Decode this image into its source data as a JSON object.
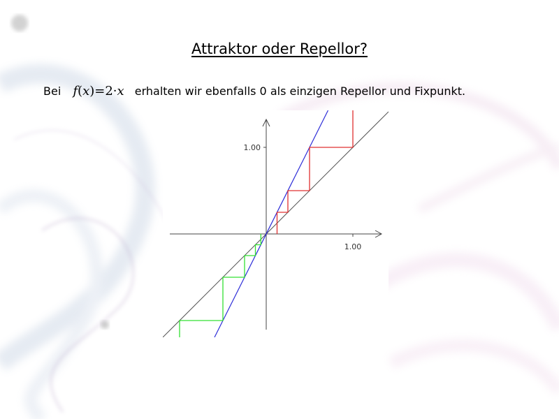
{
  "slide": {
    "title": "Attraktor oder Repellor?",
    "text_before": "Bei",
    "formula": {
      "fn": "f",
      "open": "(",
      "var": "x",
      "close_eq": ")=2·",
      "var2": "x"
    },
    "text_after": "erhalten wir ebenfalls 0 als einzigen Repellor und Fixpunkt."
  },
  "diagram": {
    "x_tick_label": "1.00",
    "y_tick_label": "1.00",
    "function": {
      "slope": 2,
      "color": "#2b2bd8"
    },
    "diagonal": {
      "slope": 1,
      "color": "#555555"
    },
    "x_range": [
      -1.4,
      1.7
    ],
    "y_range": [
      -1.35,
      1.6
    ],
    "cobweb_positive": {
      "color": "#e03030",
      "start": 0.125,
      "iterations": 4
    },
    "cobweb_negative": {
      "color": "#33e033",
      "start": -0.0625,
      "iterations": 4
    }
  }
}
